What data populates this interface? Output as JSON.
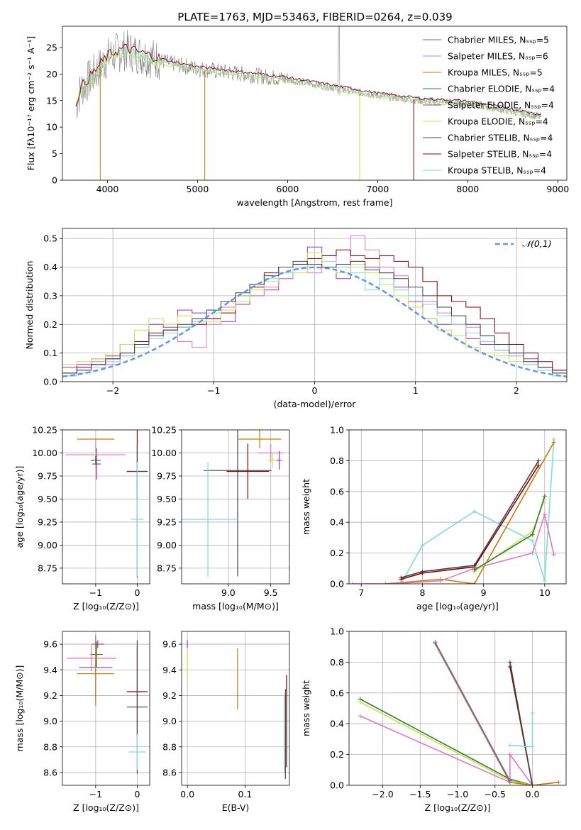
{
  "figure_title": "PLATE=1763, MJD=53463, FIBERID=0264, z=0.039",
  "colors": {
    "Chabrier MILES": "#6666cc",
    "Salpeter MILES": "#e377c2",
    "Kroupa MILES": "#c87a00",
    "Chabrier ELODIE": "#2e7d32",
    "Salpeter ELODIE": "#9b30c8",
    "Kroupa ELODIE": "#c8e04a",
    "Chabrier STELIB": "#444444",
    "Salpeter STELIB": "#8b0000",
    "Kroupa STELIB": "#7fdbda",
    "normal": "#6495ed",
    "orange_line": "#e07020"
  },
  "chart_data": [
    {
      "id": "spectrum",
      "type": "line",
      "title": "PLATE=1763, MJD=53463, FIBERID=0264, z=0.039",
      "xlabel": "wavelength [Angstrom, rest frame]",
      "ylabel": "Flux [fλ10⁻¹⁷ erg cm⁻² s⁻¹ A⁻¹]",
      "xlim": [
        3500,
        9100
      ],
      "ylim": [
        0,
        29
      ],
      "xticks": [
        4000,
        5000,
        6000,
        7000,
        8000,
        9000
      ],
      "yticks": [
        0,
        5,
        10,
        15,
        20,
        25
      ],
      "grid": false,
      "legend_position": "top-right",
      "series": [
        {
          "name": "Chabrier MILES, N_SSP=5"
        },
        {
          "name": "Salpeter MILES, N_SSP=6"
        },
        {
          "name": "Kroupa MILES, N_SSP=5"
        },
        {
          "name": "Chabrier ELODIE, N_SSP=4"
        },
        {
          "name": "Salpeter ELODIE, N_SSP=4"
        },
        {
          "name": "Kroupa ELODIE, N_SSP=4"
        },
        {
          "name": "Chabrier STELIB, N_SSP=4"
        },
        {
          "name": "Salpeter STELIB, N_SSP=4"
        },
        {
          "name": "Kroupa STELIB, N_SSP=4"
        }
      ],
      "continuum": {
        "x": [
          3650,
          3700,
          3800,
          3900,
          4000,
          4100,
          4200,
          4300,
          4400,
          4500,
          4700,
          5000,
          5500,
          6000,
          6500,
          7000,
          7500,
          8000,
          8500,
          8800
        ],
        "y": [
          14,
          17,
          19,
          21,
          23,
          24,
          24.5,
          24,
          23.5,
          23,
          22,
          21,
          20,
          19,
          17.5,
          16,
          15,
          14.5,
          13,
          12
        ]
      },
      "data_series": {
        "name": "data",
        "color": "#808080"
      }
    },
    {
      "id": "residuals",
      "type": "line",
      "xlabel": "(data-model)/error",
      "ylabel": "Normed distribution",
      "xlim": [
        -2.5,
        2.5
      ],
      "ylim": [
        0,
        0.535
      ],
      "xticks": [
        -2,
        -1,
        0,
        1,
        2
      ],
      "yticks": [
        0.0,
        0.1,
        0.2,
        0.3,
        0.4,
        0.5
      ],
      "grid": true,
      "legend_position": "top-right",
      "legend": "𝒩(0,1)",
      "histograms": [
        {
          "model": "Salpeter ELODIE",
          "values": [
            0.05,
            0.06,
            0.08,
            0.09,
            0.13,
            0.14,
            0.2,
            0.19,
            0.25,
            0.24,
            0.22,
            0.21,
            0.27,
            0.3,
            0.32,
            0.36,
            0.4,
            0.47,
            0.4,
            0.36,
            0.42,
            0.4,
            0.38,
            0.33,
            0.28,
            0.22,
            0.2,
            0.2,
            0.15,
            0.13,
            0.11,
            0.1,
            0.08,
            0.05,
            0.04
          ]
        },
        {
          "model": "Salpeter MILES",
          "values": [
            0.02,
            0.04,
            0.07,
            0.06,
            0.09,
            0.12,
            0.16,
            0.18,
            0.14,
            0.12,
            0.2,
            0.26,
            0.28,
            0.3,
            0.33,
            0.36,
            0.4,
            0.38,
            0.44,
            0.41,
            0.51,
            0.46,
            0.4,
            0.37,
            0.3,
            0.28,
            0.24,
            0.2,
            0.19,
            0.16,
            0.11,
            0.09,
            0.07,
            0.05,
            0.03
          ]
        },
        {
          "model": "Salpeter STELIB",
          "values": [
            0.03,
            0.05,
            0.06,
            0.08,
            0.1,
            0.14,
            0.17,
            0.18,
            0.19,
            0.2,
            0.22,
            0.24,
            0.3,
            0.33,
            0.38,
            0.4,
            0.41,
            0.43,
            0.44,
            0.46,
            0.44,
            0.43,
            0.44,
            0.42,
            0.4,
            0.35,
            0.3,
            0.28,
            0.26,
            0.22,
            0.17,
            0.13,
            0.1,
            0.07,
            0.04
          ]
        },
        {
          "model": "Kroupa ELODIE",
          "values": [
            0.06,
            0.07,
            0.08,
            0.1,
            0.13,
            0.18,
            0.22,
            0.2,
            0.23,
            0.22,
            0.21,
            0.25,
            0.28,
            0.32,
            0.35,
            0.38,
            0.38,
            0.45,
            0.4,
            0.38,
            0.41,
            0.38,
            0.34,
            0.3,
            0.26,
            0.22,
            0.18,
            0.16,
            0.12,
            0.1,
            0.09,
            0.07,
            0.06,
            0.04,
            0.03
          ]
        },
        {
          "model": "Kroupa STELIB",
          "values": [
            0.02,
            0.03,
            0.05,
            0.07,
            0.09,
            0.12,
            0.15,
            0.17,
            0.19,
            0.21,
            0.24,
            0.28,
            0.3,
            0.34,
            0.36,
            0.38,
            0.4,
            0.41,
            0.42,
            0.4,
            0.38,
            0.32,
            0.36,
            0.32,
            0.3,
            0.27,
            0.23,
            0.2,
            0.17,
            0.14,
            0.11,
            0.09,
            0.06,
            0.04,
            0.02
          ]
        },
        {
          "model": "Chabrier STELIB",
          "values": [
            0.03,
            0.04,
            0.06,
            0.08,
            0.1,
            0.13,
            0.16,
            0.18,
            0.2,
            0.22,
            0.25,
            0.28,
            0.31,
            0.34,
            0.37,
            0.4,
            0.42,
            0.41,
            0.4,
            0.41,
            0.42,
            0.39,
            0.38,
            0.36,
            0.33,
            0.3,
            0.26,
            0.23,
            0.2,
            0.16,
            0.13,
            0.1,
            0.07,
            0.05,
            0.03
          ]
        }
      ],
      "normal_curve": {
        "mean": 0,
        "sigma": 1
      }
    },
    {
      "id": "age_vs_Z",
      "type": "scatter",
      "xlabel": "Z [log₁₀(Z/Z⊙)]",
      "ylabel": "age  [log₁₀(age/yr)]",
      "xlim": [
        -1.8,
        0.3
      ],
      "ylim": [
        8.58,
        10.25
      ],
      "xticks": [
        -1,
        0
      ],
      "yticks": [
        8.75,
        9.0,
        9.25,
        9.5,
        9.75,
        10.0,
        10.25
      ],
      "grid": true,
      "points": [
        {
          "model": "Kroupa MILES",
          "x": -1.0,
          "y": 10.15,
          "xerr": 0.45,
          "yerr": 0.0
        },
        {
          "model": "Salpeter MILES",
          "x": -1.0,
          "y": 9.98,
          "xerr": 0.72,
          "yerr": 0.16
        },
        {
          "model": "Salpeter ELODIE",
          "x": -0.98,
          "y": 9.88,
          "xerr": 0.1,
          "yerr": 0.17
        },
        {
          "model": "Kroupa ELODIE",
          "x": -1.0,
          "y": 9.92,
          "xerr": 0.1,
          "yerr": 0.1
        },
        {
          "model": "Chabrier ELODIE",
          "x": -1.0,
          "y": 9.92,
          "xerr": 0.12,
          "yerr": 0.05
        },
        {
          "model": "Salpeter STELIB",
          "x": 0.0,
          "y": 9.8,
          "xerr": 0.25,
          "yerr": 1.15
        },
        {
          "model": "Chabrier STELIB",
          "x": 0.0,
          "y": 9.8,
          "xerr": 0.2,
          "yerr": 0.3
        },
        {
          "model": "Kroupa STELIB",
          "x": 0.0,
          "y": 9.28,
          "xerr": 0.15,
          "yerr": 0.62
        }
      ]
    },
    {
      "id": "age_vs_mass",
      "type": "scatter",
      "xlabel": "mass [log₁₀(M/M⊙)]",
      "ylabel": "",
      "xlim": [
        8.45,
        9.72
      ],
      "ylim": [
        8.58,
        10.25
      ],
      "xticks": [
        9.0,
        9.5
      ],
      "yticks": [
        8.75,
        9.0,
        9.25,
        9.5,
        9.75,
        10.0,
        10.25
      ],
      "grid": true,
      "points": [
        {
          "model": "Kroupa MILES",
          "x": 9.37,
          "y": 10.15,
          "xerr": 0.25,
          "yerr": 0.1
        },
        {
          "model": "Salpeter MILES",
          "x": 9.5,
          "y": 10.0,
          "xerr": 0.15,
          "yerr": 0.1
        },
        {
          "model": "Salpeter ELODIE",
          "x": 9.6,
          "y": 9.92,
          "xerr": 0.03,
          "yerr": 0.1
        },
        {
          "model": "Kroupa ELODIE",
          "x": 9.52,
          "y": 9.92,
          "xerr": 0.05,
          "yerr": 0.08
        },
        {
          "model": "Salpeter STELIB",
          "x": 9.23,
          "y": 9.8,
          "xerr": 0.25,
          "yerr": 0.3
        },
        {
          "model": "Chabrier STELIB",
          "x": 9.11,
          "y": 9.81,
          "xerr": 0.4,
          "yerr": 1.15
        },
        {
          "model": "Kroupa STELIB",
          "x": 8.76,
          "y": 9.28,
          "xerr": 0.35,
          "yerr": 0.62
        }
      ]
    },
    {
      "id": "weight_vs_age",
      "type": "line",
      "xlabel": "age  [log₁₀(age/yr)]",
      "ylabel": "mass weight",
      "xlim": [
        6.8,
        10.35
      ],
      "ylim": [
        0.0,
        1.0
      ],
      "xticks": [
        7,
        8,
        9,
        10
      ],
      "yticks": [
        0.0,
        0.2,
        0.4,
        0.6,
        0.8,
        1.0
      ],
      "grid": true,
      "series": [
        {
          "model": "Kroupa STELIB",
          "x": [
            7.65,
            8.0,
            8.85,
            9.8,
            10.0,
            10.15
          ],
          "y": [
            0.0,
            0.25,
            0.47,
            0.28,
            0.02,
            0.94
          ]
        },
        {
          "model": "Chabrier STELIB",
          "x": [
            7.65,
            8.0,
            8.85,
            9.9
          ],
          "y": [
            0.04,
            0.08,
            0.12,
            0.8
          ]
        },
        {
          "model": "Salpeter STELIB",
          "x": [
            7.65,
            8.0,
            8.85,
            9.9
          ],
          "y": [
            0.03,
            0.07,
            0.11,
            0.77
          ]
        },
        {
          "model": "Kroupa MILES",
          "x": [
            7.4,
            8.3,
            8.85,
            10.15
          ],
          "y": [
            0.0,
            0.03,
            0.0,
            0.92
          ]
        },
        {
          "model": "Salpeter MILES",
          "x": [
            6.85,
            7.5,
            8.3,
            8.85,
            9.8,
            10.0,
            10.15
          ],
          "y": [
            0.0,
            0.0,
            0.02,
            0.1,
            0.2,
            0.45,
            0.19
          ]
        },
        {
          "model": "Kroupa ELODIE",
          "x": [
            8.85,
            9.8,
            10.0
          ],
          "y": [
            0.08,
            0.34,
            0.55
          ]
        },
        {
          "model": "Chabrier ELODIE",
          "x": [
            8.85,
            9.8,
            10.0
          ],
          "y": [
            0.09,
            0.32,
            0.57
          ]
        }
      ]
    },
    {
      "id": "mass_vs_Z",
      "type": "scatter",
      "xlabel": "Z [log₁₀(Z/Z⊙)]",
      "ylabel": "mass [log₁₀(M/M⊙)]",
      "xlim": [
        -1.8,
        0.3
      ],
      "ylim": [
        8.5,
        9.7
      ],
      "xticks": [
        -1,
        0
      ],
      "yticks": [
        8.6,
        8.8,
        9.0,
        9.2,
        9.4,
        9.6
      ],
      "grid": true,
      "points": [
        {
          "model": "Salpeter ELODIE",
          "x": -0.95,
          "y": 9.6,
          "xerr": 0.15,
          "yerr": 0.03
        },
        {
          "model": "Chabrier ELODIE",
          "x": -0.98,
          "y": 9.52,
          "xerr": 0.15,
          "yerr": 0.1
        },
        {
          "model": "Salpeter MILES",
          "x": -1.1,
          "y": 9.49,
          "xerr": 0.6,
          "yerr": 0.1
        },
        {
          "model": "Chabrier MILES",
          "x": -1.0,
          "y": 9.42,
          "xerr": 0.4,
          "yerr": 0.25
        },
        {
          "model": "Kroupa MILES",
          "x": -1.0,
          "y": 9.37,
          "xerr": 0.45,
          "yerr": 0.25
        },
        {
          "model": "Salpeter STELIB",
          "x": 0.0,
          "y": 9.23,
          "xerr": 0.25,
          "yerr": 0.35
        },
        {
          "model": "Chabrier STELIB",
          "x": 0.0,
          "y": 9.11,
          "xerr": 0.25,
          "yerr": 0.52
        },
        {
          "model": "Kroupa STELIB",
          "x": 0.0,
          "y": 8.76,
          "xerr": 0.2,
          "yerr": 0.14
        }
      ]
    },
    {
      "id": "mass_vs_EBV",
      "type": "scatter",
      "xlabel": "E(B-V)",
      "ylabel": "",
      "xlim": [
        -0.01,
        0.177
      ],
      "ylim": [
        8.5,
        9.7
      ],
      "xticks": [
        0.0,
        0.1
      ],
      "yticks": [
        8.6,
        8.8,
        9.0,
        9.2,
        9.4,
        9.6
      ],
      "grid": true,
      "points": [
        {
          "model": "Salpeter ELODIE",
          "x": 0.0,
          "y": 9.6,
          "yerr": 0.03
        },
        {
          "model": "Kroupa ELODIE",
          "x": 0.0,
          "y": 9.45,
          "yerr": 0.1
        },
        {
          "model": "Kroupa MILES",
          "x": 0.087,
          "y": 9.33,
          "yerr": 0.24
        },
        {
          "model": "Salpeter STELIB",
          "x": 0.172,
          "y": 9.0,
          "yerr": 0.36
        },
        {
          "model": "Chabrier STELIB",
          "x": 0.17,
          "y": 8.9,
          "yerr": 0.35
        },
        {
          "model": "Kroupa STELIB",
          "x": 0.168,
          "y": 8.9,
          "yerr": 0.3
        }
      ]
    },
    {
      "id": "weight_vs_Z",
      "type": "line",
      "xlabel": "Z [log₁₀(Z/Z⊙)]",
      "ylabel": "mass weight",
      "xlim": [
        -2.45,
        0.45
      ],
      "ylim": [
        0.0,
        1.0
      ],
      "xticks": [
        -2.0,
        -1.5,
        -1.0,
        -0.5,
        0.0
      ],
      "yticks": [
        0.0,
        0.2,
        0.4,
        0.6,
        0.8,
        1.0
      ],
      "grid": true,
      "series": [
        {
          "model": "Chabrier ELODIE",
          "x": [
            -2.3,
            -0.3,
            0.0
          ],
          "y": [
            0.56,
            0.04,
            0.0
          ]
        },
        {
          "model": "Kroupa ELODIE",
          "x": [
            -2.3,
            -0.3,
            0.0
          ],
          "y": [
            0.54,
            0.03,
            0.0
          ]
        },
        {
          "model": "Salpeter MILES",
          "x": [
            -2.3,
            -0.3,
            -0.3,
            0.0
          ],
          "y": [
            0.45,
            0.02,
            0.2,
            0.0
          ]
        },
        {
          "model": "Kroupa MILES",
          "x": [
            -1.3,
            -0.3,
            0.0,
            0.35
          ],
          "y": [
            0.92,
            0.02,
            0.0,
            0.02
          ]
        },
        {
          "model": "Chabrier MILES",
          "x": [
            -1.3,
            -0.3
          ],
          "y": [
            0.93,
            0.03
          ]
        },
        {
          "model": "Salpeter STELIB",
          "x": [
            -0.3,
            0.0
          ],
          "y": [
            0.77,
            0.0
          ]
        },
        {
          "model": "Chabrier STELIB",
          "x": [
            -0.3,
            0.0
          ],
          "y": [
            0.8,
            0.0
          ]
        },
        {
          "model": "Kroupa STELIB",
          "x": [
            -0.3,
            0.0,
            0.0
          ],
          "y": [
            0.26,
            0.25,
            0.47
          ]
        }
      ]
    }
  ]
}
